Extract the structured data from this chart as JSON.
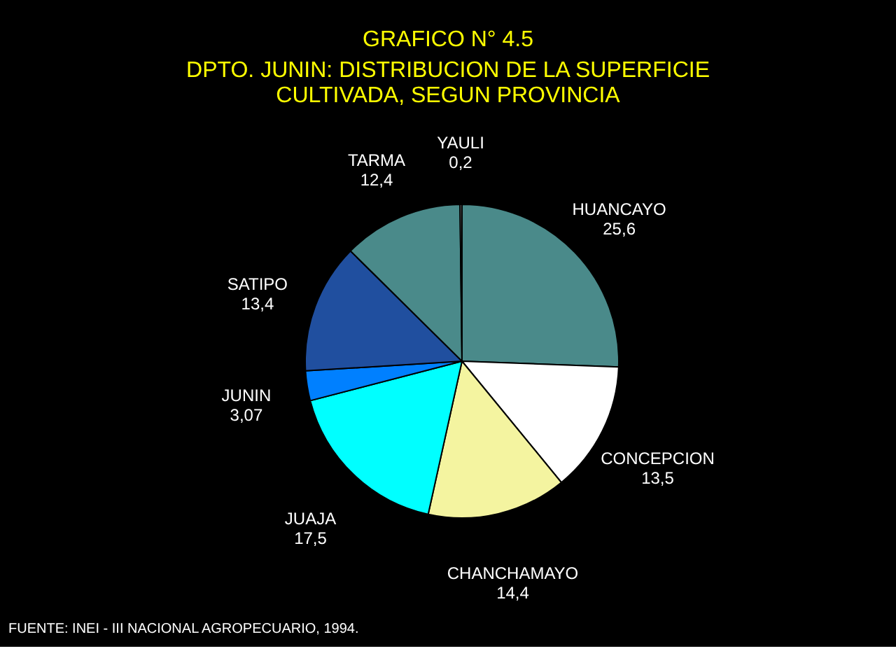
{
  "chart_data": {
    "type": "pie",
    "title": "GRAFICO N° 4.5",
    "subtitle": "DPTO. JUNIN: DISTRIBUCION DE LA SUPERFICIE CULTIVADA, SEGUN PROVINCIA",
    "categories": [
      "HUANCAYO",
      "CONCEPCION",
      "CHANCHAMAYO",
      "JUAJA",
      "JUNIN",
      "SATIPO",
      "TARMA",
      "YAULI"
    ],
    "values": [
      25.6,
      13.5,
      14.4,
      17.5,
      3.07,
      13.4,
      12.4,
      0.2
    ],
    "value_labels": [
      "25,6",
      "13,5",
      "14,4",
      "17,5",
      "3,07",
      "13,4",
      "12,4",
      "0,2"
    ],
    "colors": [
      "#4a8a8a",
      "#ffffff",
      "#f4f4a0",
      "#00ffff",
      "#0080ff",
      "#204f9f",
      "#4a8a8a",
      "#808080"
    ],
    "annotations": [
      "FUENTE: INEI - III NACIONAL AGROPECUARIO, 1994."
    ]
  }
}
